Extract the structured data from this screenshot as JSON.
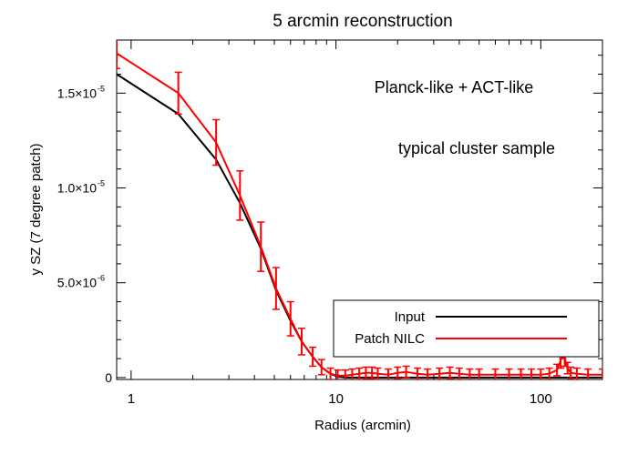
{
  "chart_data": {
    "type": "line",
    "title": "5 arcmin reconstruction",
    "xlabel": "Radius (arcmin)",
    "ylabel": "y SZ (7 degree patch)",
    "x_scale": "log",
    "xlim": [
      0.85,
      200
    ],
    "ylim": [
      -1e-07,
      1.78e-05
    ],
    "x_ticks": [
      {
        "value": 1,
        "label": "1"
      },
      {
        "value": 10,
        "label": "10"
      },
      {
        "value": 100,
        "label": "100"
      }
    ],
    "y_ticks": [
      {
        "value": 0,
        "label": "0",
        "exp": ""
      },
      {
        "value": 5e-06,
        "label": "5.0×10",
        "exp": "-6"
      },
      {
        "value": 1e-05,
        "label": "1.0×10",
        "exp": "-5"
      },
      {
        "value": 1.5e-05,
        "label": "1.5×10",
        "exp": "-5"
      }
    ],
    "annotations": [
      "Planck-like + ACT-like",
      "typical cluster sample"
    ],
    "legend": {
      "position": "bottom-right",
      "entries": [
        "Input",
        "Patch NILC"
      ]
    },
    "series": [
      {
        "name": "Input",
        "color": "#000000",
        "x": [
          0.85,
          1.7,
          2.6,
          3.4,
          4.3,
          5.1,
          6.0,
          6.8,
          7.7,
          8.5,
          9.4,
          10.2,
          11.1,
          12,
          13,
          15,
          18,
          25,
          35,
          50,
          80,
          120,
          200
        ],
        "y": [
          1.6e-05,
          1.39e-05,
          1.15e-05,
          9.2e-06,
          6.8e-06,
          4.6e-06,
          3e-06,
          1.9e-06,
          1.1e-06,
          5.5e-07,
          2e-07,
          5e-08,
          0,
          0,
          0,
          0,
          0,
          0,
          0,
          0,
          0,
          0,
          0
        ]
      },
      {
        "name": "Patch NILC",
        "color": "#ff0000",
        "x": [
          0.85,
          1.7,
          2.6,
          3.4,
          4.3,
          5.1,
          6.0,
          6.8,
          7.7,
          8.5,
          9.4,
          10.2,
          11.1,
          12,
          13,
          14,
          15,
          16,
          18,
          20,
          22,
          25,
          28,
          32,
          36,
          40,
          45,
          50,
          60,
          70,
          80,
          90,
          100,
          110,
          120,
          125,
          128,
          131,
          135,
          140,
          150,
          170,
          200
        ],
        "y": [
          1.71e-05,
          1.5e-05,
          1.24e-05,
          9.6e-06,
          6.9e-06,
          4.7e-06,
          3.1e-06,
          1.9e-06,
          1.1e-06,
          5.5e-07,
          2e-07,
          1e-07,
          1e-07,
          1.5e-07,
          2e-07,
          2.5e-07,
          2.5e-07,
          2e-07,
          1.5e-07,
          2.5e-07,
          3e-07,
          2e-07,
          1.5e-07,
          2e-07,
          2.5e-07,
          2e-07,
          1.5e-07,
          1.5e-07,
          1.5e-07,
          1.5e-07,
          1.5e-07,
          1.5e-07,
          1.5e-07,
          2e-07,
          4e-07,
          9e-07,
          1.4e-06,
          1e-06,
          5e-07,
          2.5e-07,
          2e-07,
          1.5e-07,
          1.5e-07
        ],
        "yerr": [
          8e-07,
          1.1e-06,
          1.2e-06,
          1.3e-06,
          1.3e-06,
          1.1e-06,
          9e-07,
          7e-07,
          5e-07,
          4e-07,
          3e-07,
          3e-07,
          3e-07,
          3e-07,
          3e-07,
          3e-07,
          3e-07,
          3e-07,
          3e-07,
          3e-07,
          3e-07,
          3e-07,
          3e-07,
          3e-07,
          3e-07,
          3e-07,
          3e-07,
          3e-07,
          3e-07,
          3e-07,
          3e-07,
          3e-07,
          3e-07,
          3e-07,
          3e-07,
          4e-07,
          4e-07,
          4e-07,
          3e-07,
          3e-07,
          3e-07,
          3e-07,
          3e-07
        ]
      }
    ]
  }
}
